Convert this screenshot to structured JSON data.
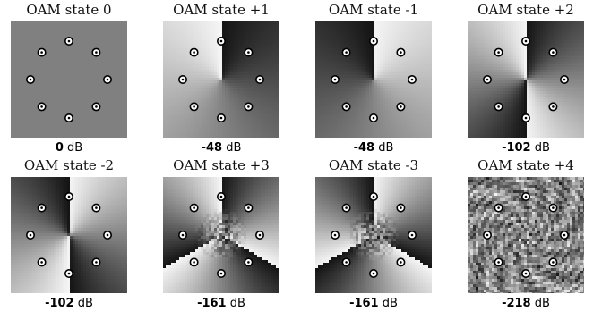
{
  "panels": [
    {
      "title": "OAM state 0",
      "value": "0",
      "unit": "dB",
      "state": 0
    },
    {
      "title": "OAM state +1",
      "value": "-48",
      "unit": "dB",
      "state": 1
    },
    {
      "title": "OAM state -1",
      "value": "-48",
      "unit": "dB",
      "state": -1
    },
    {
      "title": "OAM state +2",
      "value": "-102",
      "unit": "dB",
      "state": 2
    },
    {
      "title": "OAM state -2",
      "value": "-102",
      "unit": "dB",
      "state": -2
    },
    {
      "title": "OAM state +3",
      "value": "-161",
      "unit": "dB",
      "state": 3
    },
    {
      "title": "OAM state -3",
      "value": "-161",
      "unit": "dB",
      "state": -3
    },
    {
      "title": "OAM state +4",
      "value": "-218",
      "unit": "dB",
      "state": 4
    }
  ],
  "markers_per_panel": 8
}
